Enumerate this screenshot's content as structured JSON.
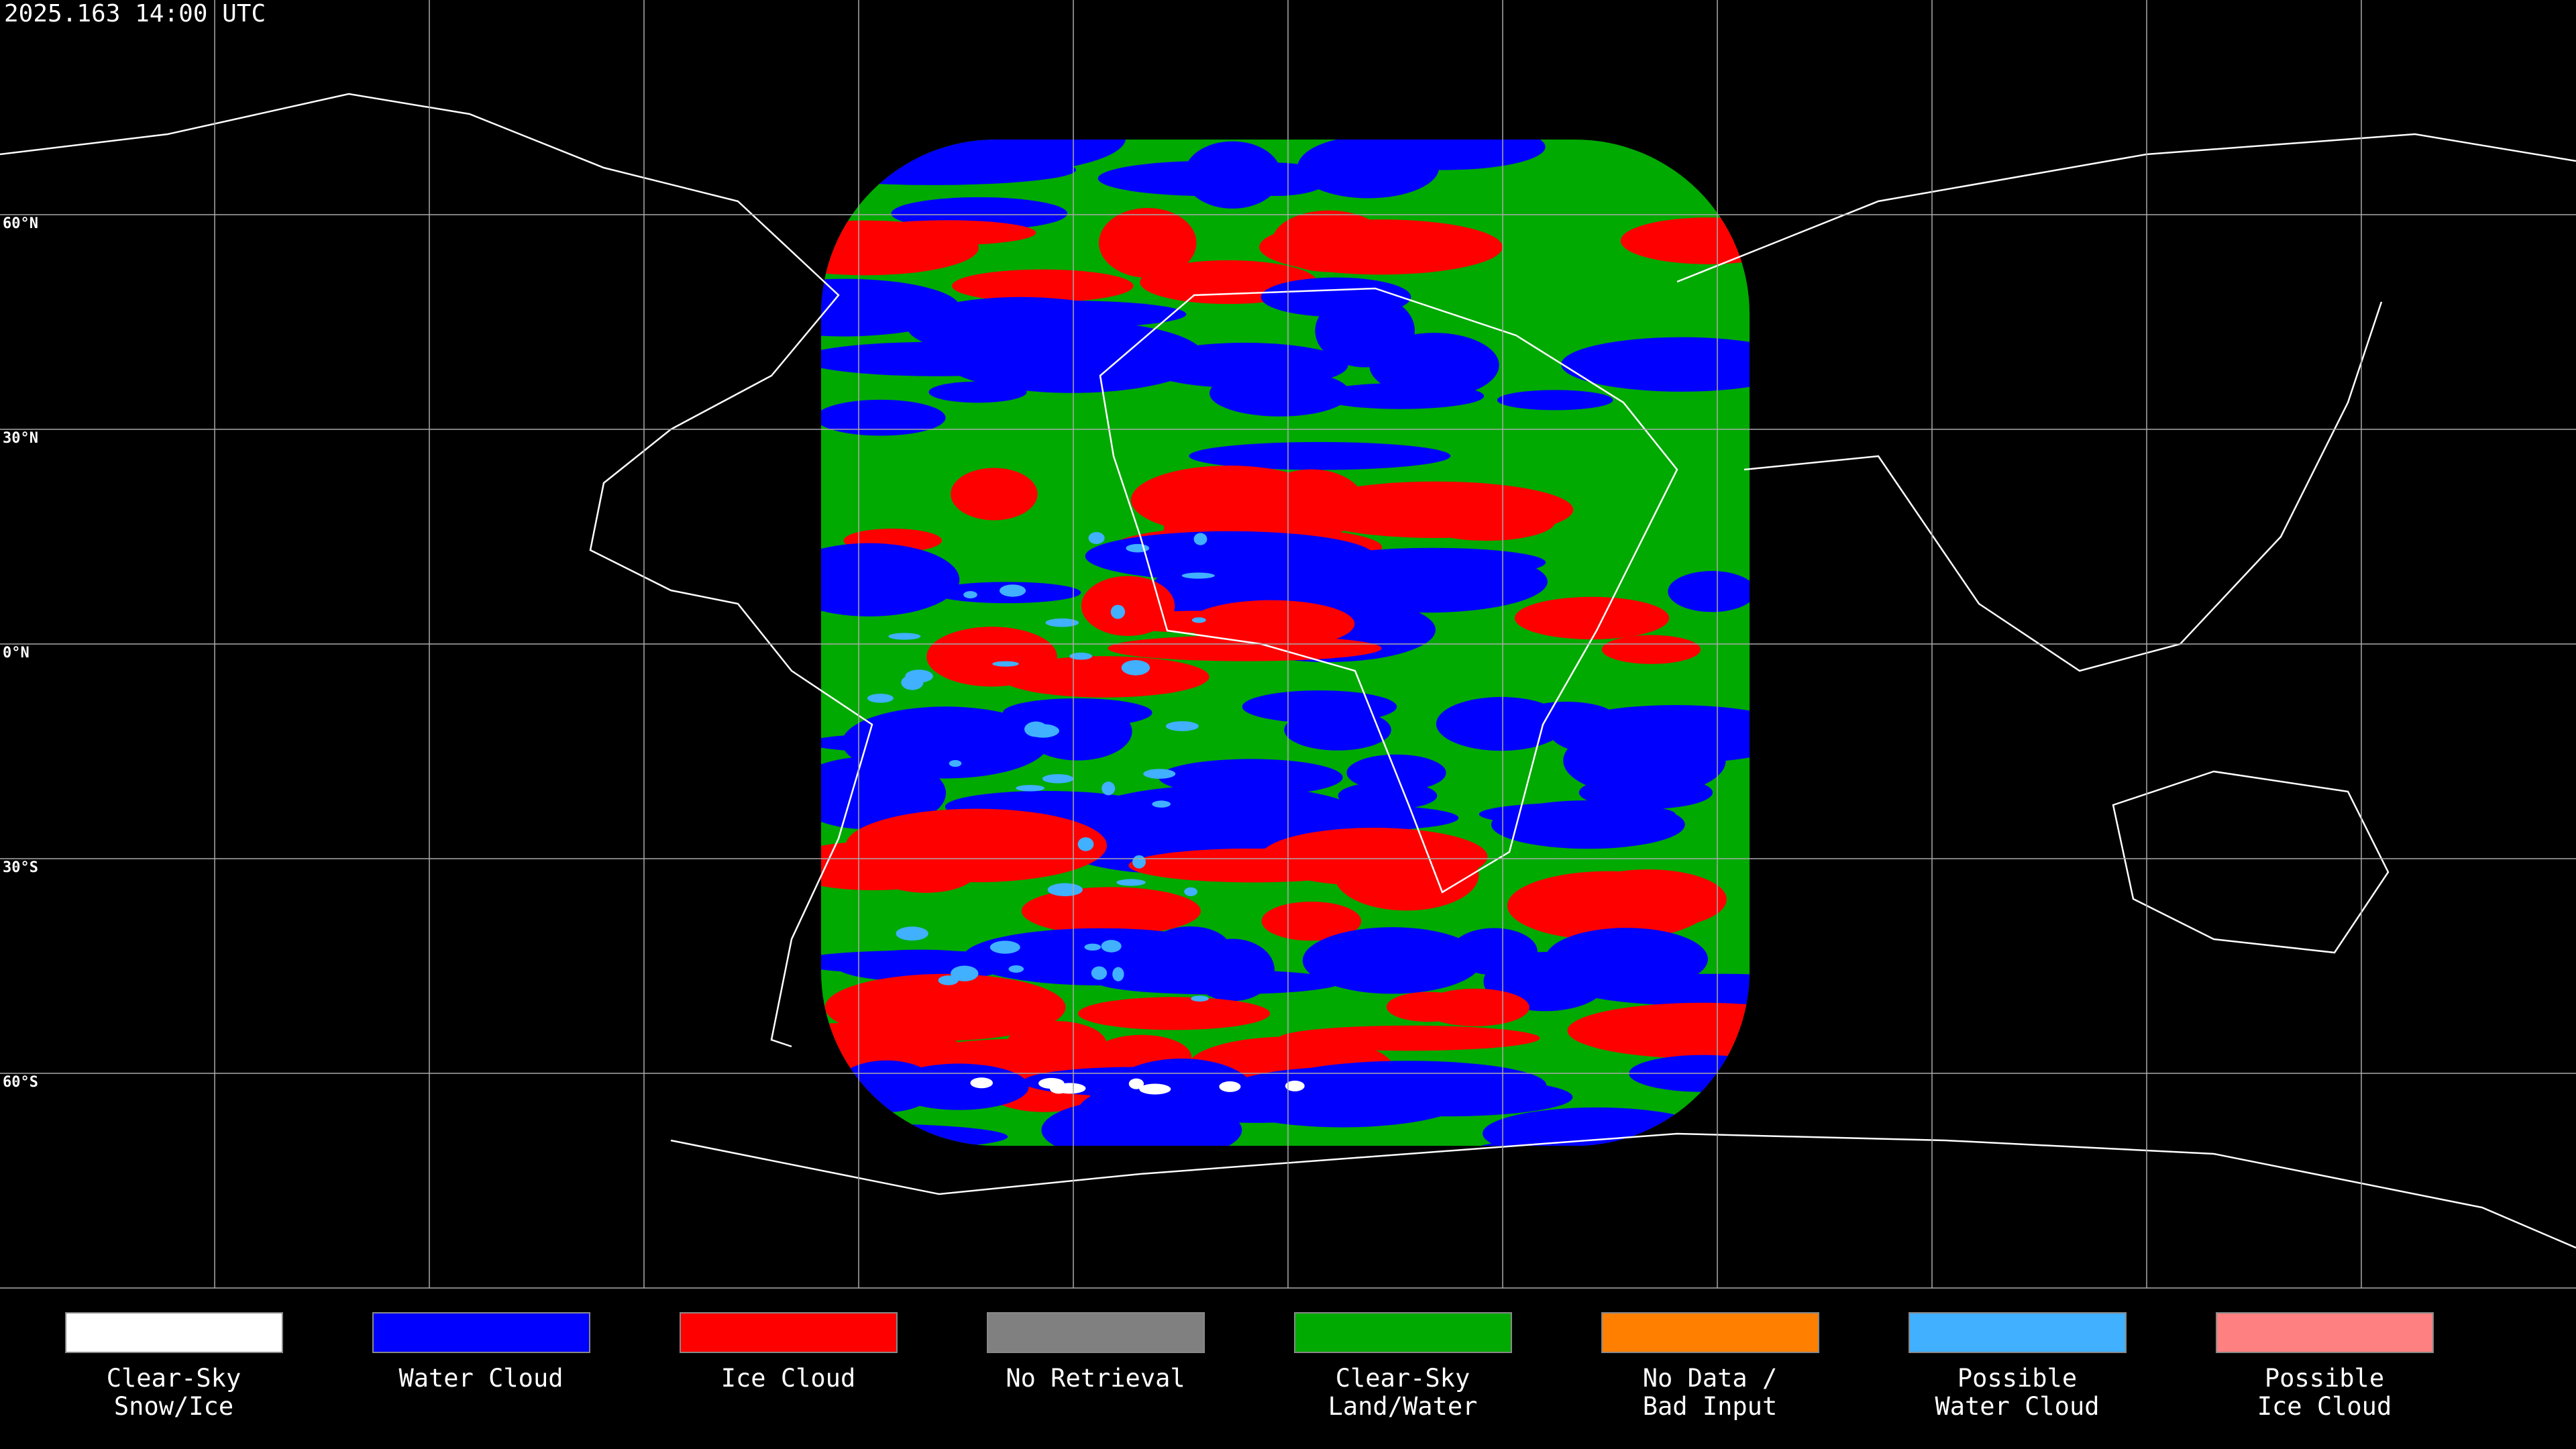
{
  "header": {
    "timestamp": "2025.163 14:00 UTC"
  },
  "map": {
    "latitude_labels": [
      "60°N",
      "30°N",
      "0°N",
      "30°S",
      "60°S"
    ]
  },
  "legend": {
    "items": [
      {
        "label_lines": [
          "Clear-Sky",
          "Snow/Ice"
        ],
        "color": "#ffffff"
      },
      {
        "label_lines": [
          "Water Cloud"
        ],
        "color": "#0000ff"
      },
      {
        "label_lines": [
          "Ice Cloud"
        ],
        "color": "#ff0000"
      },
      {
        "label_lines": [
          "No Retrieval"
        ],
        "color": "#808080"
      },
      {
        "label_lines": [
          "Clear-Sky",
          "Land/Water"
        ],
        "color": "#00aa00"
      },
      {
        "label_lines": [
          "No Data /",
          "Bad Input"
        ],
        "color": "#ff8000"
      },
      {
        "label_lines": [
          "Possible",
          "Water Cloud"
        ],
        "color": "#40b0ff"
      },
      {
        "label_lines": [
          "Possible",
          "Ice Cloud"
        ],
        "color": "#ff8080"
      }
    ]
  }
}
